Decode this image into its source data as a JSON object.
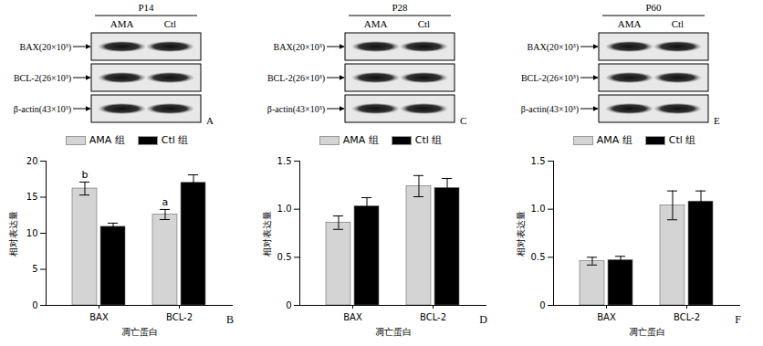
{
  "blots": [
    {
      "title": "P14",
      "lanes": [
        "AMA",
        "Ctl"
      ],
      "rows": [
        "BAX(20×10³)",
        "BCL-2(26×10³)",
        "β-actin(43×10³)"
      ],
      "panel_label": "A"
    },
    {
      "title": "P28",
      "lanes": [
        "AMA",
        "Ctl"
      ],
      "rows": [
        "BAX(20×10³)",
        "BCL-2(26×10³)",
        "β-actin(43×10³)"
      ],
      "panel_label": "C"
    },
    {
      "title": "P60",
      "lanes": [
        "AMA",
        "Ctl"
      ],
      "rows": [
        "BAX(20×10³)",
        "BCL-2(26×10³)",
        "β-actin(43×10³)"
      ],
      "panel_label": "E"
    }
  ],
  "chart_data": [
    {
      "type": "bar",
      "panel_label": "B",
      "xlabel": "凋亡蛋白",
      "ylabel": "相对表达量",
      "categories": [
        "BAX",
        "BCL-2"
      ],
      "series": [
        {
          "name": "AMA 组",
          "color": "#d4d4d4",
          "values": [
            16.2,
            12.6
          ],
          "errors": [
            0.9,
            0.7
          ]
        },
        {
          "name": "Ctl 组",
          "color": "#000000",
          "values": [
            10.9,
            17.0
          ],
          "errors": [
            0.5,
            1.1
          ]
        }
      ],
      "annotations": [
        {
          "text": "b",
          "series": 0,
          "category": 0
        },
        {
          "text": "a",
          "series": 0,
          "category": 1
        }
      ],
      "ylim": [
        0,
        20
      ],
      "yticks": [
        0,
        5,
        10,
        15,
        20
      ],
      "legend": "top"
    },
    {
      "type": "bar",
      "panel_label": "D",
      "xlabel": "凋亡蛋白",
      "ylabel": "相对表达量",
      "categories": [
        "BAX",
        "BCL-2"
      ],
      "series": [
        {
          "name": "AMA 组",
          "color": "#d4d4d4",
          "values": [
            0.86,
            1.24
          ],
          "errors": [
            0.07,
            0.11
          ]
        },
        {
          "name": "Ctl 组",
          "color": "#000000",
          "values": [
            1.03,
            1.22
          ],
          "errors": [
            0.09,
            0.1
          ]
        }
      ],
      "ylim": [
        0,
        1.5
      ],
      "yticks": [
        0,
        0.5,
        {
          "value": 1,
          "label": "1.0"
        },
        1.5
      ],
      "legend": "top"
    },
    {
      "type": "bar",
      "panel_label": "F",
      "xlabel": "凋亡蛋白",
      "ylabel": "相对表达量",
      "categories": [
        "BAX",
        "BCL-2"
      ],
      "series": [
        {
          "name": "AMA 组",
          "color": "#d4d4d4",
          "values": [
            0.46,
            1.04
          ],
          "errors": [
            0.04,
            0.15
          ]
        },
        {
          "name": "Ctl 组",
          "color": "#000000",
          "values": [
            0.47,
            1.08
          ],
          "errors": [
            0.04,
            0.11
          ]
        }
      ],
      "ylim": [
        0,
        1.5
      ],
      "yticks": [
        0,
        0.5,
        {
          "value": 1,
          "label": "1.0"
        },
        1.5
      ],
      "legend": "top"
    }
  ]
}
